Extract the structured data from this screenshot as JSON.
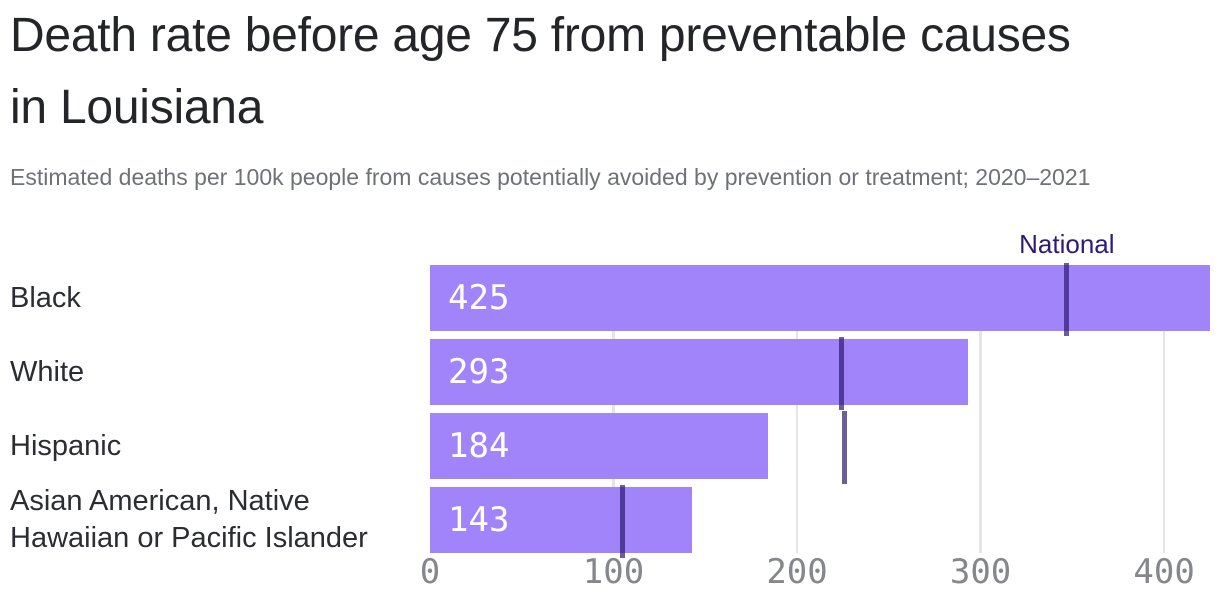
{
  "header": {
    "title_lines": [
      "Death rate before age 75 from preventable causes",
      "in Louisiana"
    ],
    "subtitle": "Estimated deaths per 100k people from causes potentially avoided by prevention or treatment; 2020–2021"
  },
  "chart_data": {
    "type": "bar",
    "orientation": "horizontal",
    "title": "Death rate before age 75 from preventable causes in Louisiana",
    "subtitle": "Estimated deaths per 100k people from causes potentially avoided by prevention or treatment; 2020–2021",
    "categories": [
      "Black",
      "White",
      "Hispanic",
      "Asian American, Native Hawaiian or Pacific Islander"
    ],
    "values": [
      425,
      293,
      184,
      143
    ],
    "value_labels": [
      "425",
      "293",
      "184",
      "143"
    ],
    "national": {
      "label": "National",
      "values": [
        347,
        224,
        226,
        105
      ]
    },
    "x_ticks": [
      "0",
      "100",
      "200",
      "300",
      "400"
    ],
    "x_tick_values": [
      0,
      100,
      200,
      300,
      400
    ],
    "xlim": [
      0,
      425
    ],
    "xlabel": "",
    "ylabel": "",
    "grid": true,
    "legend": "none",
    "colors": {
      "bar": "#a284fa",
      "value_label": "#ffffff",
      "national_marker": "rgba(44,26,112,0.7)",
      "national_label": "#2b1c78",
      "gridline": "#e5e5e8",
      "axis_tick": "#85878c"
    }
  }
}
